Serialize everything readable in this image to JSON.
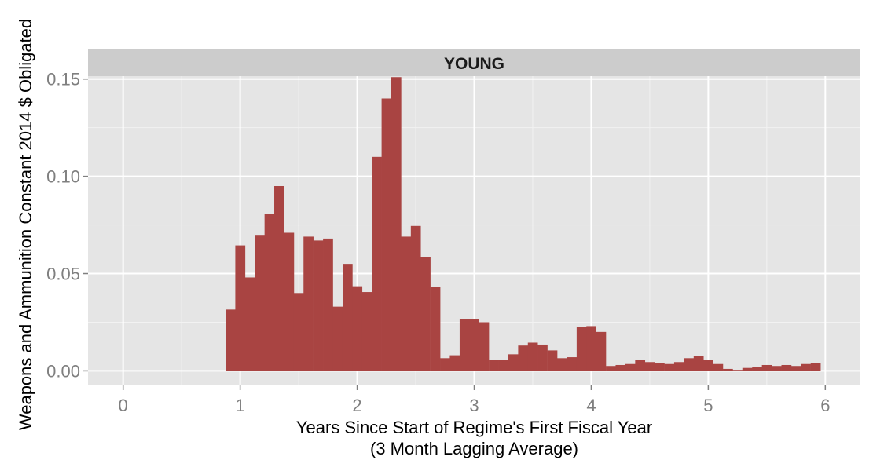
{
  "chart_data": {
    "type": "bar",
    "facet_label": "YOUNG",
    "xlabel_line1": "Years Since Start of Regime's First Fiscal Year",
    "xlabel_line2": "(3 Month Lagging Average)",
    "ylabel": "Weapons and Ammunition Constant 2014 $ Obligated",
    "xlim": [
      -0.3,
      6.3
    ],
    "ylim": [
      -0.0075,
      0.1515
    ],
    "x_ticks": [
      0,
      1,
      2,
      3,
      4,
      5,
      6
    ],
    "x_tick_labels": [
      "0",
      "1",
      "2",
      "3",
      "4",
      "5",
      "6"
    ],
    "y_ticks": [
      0.0,
      0.05,
      0.1,
      0.15
    ],
    "y_tick_labels": [
      "0.00",
      "0.05",
      "0.10",
      "0.15"
    ],
    "grid": true,
    "bar_width_years": 0.0833,
    "bar_color": "#a94442",
    "panel_color": "#e5e5e5",
    "strip_color": "#cccccc",
    "x": [
      0.917,
      1.0,
      1.083,
      1.167,
      1.25,
      1.333,
      1.417,
      1.5,
      1.583,
      1.667,
      1.75,
      1.833,
      1.917,
      2.0,
      2.083,
      2.167,
      2.25,
      2.333,
      2.417,
      2.5,
      2.583,
      2.667,
      2.75,
      2.833,
      2.917,
      3.0,
      3.083,
      3.167,
      3.25,
      3.333,
      3.417,
      3.5,
      3.583,
      3.667,
      3.75,
      3.833,
      3.917,
      4.0,
      4.083,
      4.167,
      4.25,
      4.333,
      4.417,
      4.5,
      4.583,
      4.667,
      4.75,
      4.833,
      4.917,
      5.0,
      5.083,
      5.167,
      5.25,
      5.333,
      5.417,
      5.5,
      5.583,
      5.667,
      5.75,
      5.833,
      5.917
    ],
    "values": [
      0.0315,
      0.0645,
      0.048,
      0.0695,
      0.0805,
      0.095,
      0.071,
      0.04,
      0.069,
      0.067,
      0.068,
      0.033,
      0.055,
      0.0435,
      0.0405,
      0.11,
      0.14,
      0.151,
      0.069,
      0.0745,
      0.0585,
      0.043,
      0.0065,
      0.008,
      0.0265,
      0.0265,
      0.025,
      0.0055,
      0.0055,
      0.0085,
      0.013,
      0.0145,
      0.0135,
      0.0105,
      0.0065,
      0.007,
      0.0225,
      0.023,
      0.02,
      0.0025,
      0.003,
      0.0035,
      0.0055,
      0.0045,
      0.004,
      0.0035,
      0.0045,
      0.0065,
      0.0075,
      0.0055,
      0.0035,
      0.001,
      0.0005,
      0.0015,
      0.002,
      0.003,
      0.0025,
      0.003,
      0.0025,
      0.0035,
      0.004
    ]
  }
}
